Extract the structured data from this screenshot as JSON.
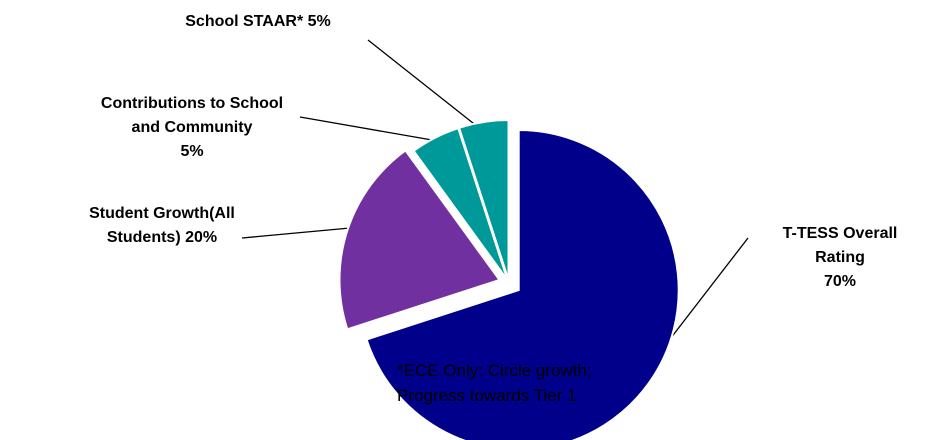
{
  "chart_data": {
    "type": "pie",
    "title": "",
    "slices": [
      {
        "label": "T-TESS Overall Rating",
        "value": 70,
        "color": "#00008B",
        "label_lines": [
          "T-TESS Overall",
          "Rating",
          "70%"
        ]
      },
      {
        "label": "Student Growth(All Students)",
        "value": 20,
        "color": "#7030A0",
        "label_lines": [
          "Student Growth(All",
          "Students) 20%"
        ]
      },
      {
        "label": "Contributions to School and Community",
        "value": 5,
        "color": "#009999",
        "label_lines": [
          "Contributions to School",
          "and Community",
          "5%"
        ]
      },
      {
        "label": "School STAAR*",
        "value": 5,
        "color": "#009999",
        "label_lines": [
          "School STAAR*  5%"
        ]
      }
    ]
  },
  "footnote": {
    "line1": "*ECE Only: Circle growth;",
    "line2": "Progress towards Tier 1"
  }
}
